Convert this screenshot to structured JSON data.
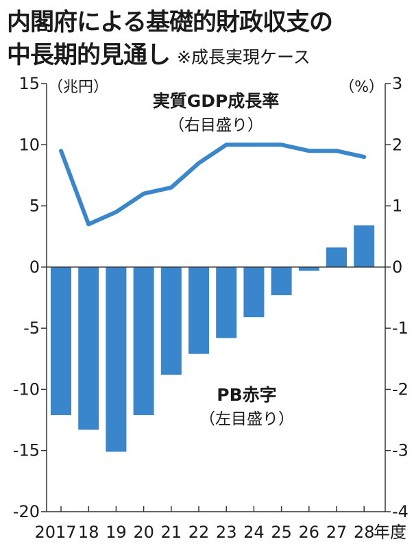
{
  "title": {
    "line1": "内閣府による基礎的財政収支の",
    "line2": "中長期的見通し",
    "note": "※成長実現ケース"
  },
  "colors": {
    "accent": "#3a86cc",
    "axis": "#333333",
    "text": "#1a1a1a"
  },
  "chart_data": {
    "type": "bar",
    "categories": [
      "2017",
      "18",
      "19",
      "20",
      "21",
      "22",
      "23",
      "24",
      "25",
      "26",
      "27",
      "28"
    ],
    "x_unit_suffix": "年度",
    "left_axis": {
      "unit_label": "（兆円）",
      "ylim": [
        -20,
        15
      ],
      "ticks": [
        15,
        10,
        5,
        0,
        -5,
        -10,
        -15,
        -20
      ],
      "tick_labels": [
        "15",
        "10",
        "5",
        "0",
        "-5",
        "-10",
        "-15",
        "-20"
      ]
    },
    "right_axis": {
      "unit_label": "（%）",
      "ylim": [
        -4,
        3
      ],
      "ticks": [
        3,
        2,
        1,
        0,
        -1,
        -2,
        -3,
        -4
      ],
      "tick_labels": [
        "3",
        "2",
        "1",
        "0",
        "-1",
        "-2",
        "-3",
        "-4"
      ]
    },
    "grid": false,
    "series": [
      {
        "name": "PB赤字",
        "note": "（左目盛り）",
        "type": "bar",
        "axis": "left",
        "values": [
          -12.1,
          -13.3,
          -15.1,
          -12.1,
          -8.8,
          -7.1,
          -5.8,
          -4.1,
          -2.3,
          -0.3,
          1.6,
          3.4
        ]
      },
      {
        "name": "実質GDP成長率",
        "note": "（右目盛り）",
        "type": "line",
        "axis": "right",
        "values": [
          1.9,
          0.7,
          0.9,
          1.2,
          1.3,
          1.7,
          2.0,
          2.0,
          2.0,
          1.9,
          1.9,
          1.8
        ]
      }
    ]
  }
}
